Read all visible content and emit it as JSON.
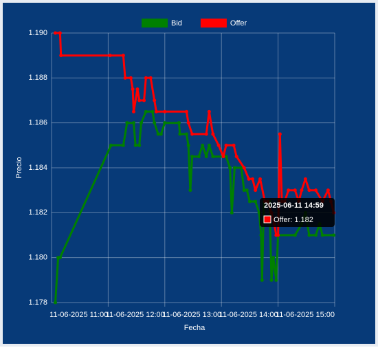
{
  "chart_data": {
    "type": "line",
    "y_label": "Precio",
    "x_label": "Fecha",
    "xlim": [
      "2025-06-11 10:00",
      "2025-06-11 15:00"
    ],
    "xticks": [
      {
        "value": "2025-06-11 11:00",
        "label": "11-06-2025 11:00"
      },
      {
        "value": "2025-06-11 12:00",
        "label": "11-06-2025 12:00"
      },
      {
        "value": "2025-06-11 13:00",
        "label": "11-06-2025 13:00"
      },
      {
        "value": "2025-06-11 14:00",
        "label": "11-06-2025 14:00"
      },
      {
        "value": "2025-06-11 15:00",
        "label": "11-06-2025 15:00"
      }
    ],
    "ylim": [
      1.178,
      1.19
    ],
    "yticks": [
      1.178,
      {
        "value": 1.18,
        "label": "1.180"
      },
      1.182,
      1.184,
      1.186,
      1.188,
      {
        "value": 1.19,
        "label": "1.190"
      }
    ],
    "grid": true,
    "legend": "top",
    "series": [
      {
        "name": "Bid",
        "color": "#008000",
        "x": [
          "2025-06-11 10:04",
          "2025-06-11 10:07",
          "2025-06-11 10:09",
          "2025-06-11 11:03",
          "2025-06-11 11:16",
          "2025-06-11 11:20",
          "2025-06-11 11:27",
          "2025-06-11 11:29",
          "2025-06-11 11:33",
          "2025-06-11 11:35",
          "2025-06-11 11:40",
          "2025-06-11 11:47",
          "2025-06-11 11:49",
          "2025-06-11 11:53",
          "2025-06-11 11:56",
          "2025-06-11 12:00",
          "2025-06-11 12:15",
          "2025-06-11 12:16",
          "2025-06-11 12:23",
          "2025-06-11 12:25",
          "2025-06-11 12:27",
          "2025-06-11 12:29",
          "2025-06-11 12:36",
          "2025-06-11 12:40",
          "2025-06-11 12:44",
          "2025-06-11 12:47",
          "2025-06-11 12:51",
          "2025-06-11 13:05",
          "2025-06-11 13:09",
          "2025-06-11 13:11",
          "2025-06-11 13:14",
          "2025-06-11 13:21",
          "2025-06-11 13:24",
          "2025-06-11 13:27",
          "2025-06-11 13:30",
          "2025-06-11 13:36",
          "2025-06-11 13:40",
          "2025-06-11 13:42",
          "2025-06-11 13:43",
          "2025-06-11 13:45",
          "2025-06-11 13:51",
          "2025-06-11 13:53",
          "2025-06-11 13:55",
          "2025-06-11 13:58",
          "2025-06-11 14:00",
          "2025-06-11 14:18",
          "2025-06-11 14:25",
          "2025-06-11 14:29",
          "2025-06-11 14:33",
          "2025-06-11 14:40",
          "2025-06-11 14:44",
          "2025-06-11 14:47",
          "2025-06-11 14:59"
        ],
        "values": [
          1.178,
          1.18,
          1.18,
          1.185,
          1.185,
          1.186,
          1.186,
          1.185,
          1.185,
          1.186,
          1.1865,
          1.1865,
          1.186,
          1.1855,
          1.1855,
          1.186,
          1.186,
          1.1855,
          1.1855,
          1.185,
          1.183,
          1.1845,
          1.1845,
          1.185,
          1.1845,
          1.185,
          1.1845,
          1.1845,
          1.184,
          1.182,
          1.184,
          1.184,
          1.183,
          1.183,
          1.1825,
          1.1825,
          1.182,
          1.181,
          1.179,
          1.1825,
          1.1825,
          1.179,
          1.18,
          1.179,
          1.181,
          1.181,
          1.1815,
          1.182,
          1.181,
          1.181,
          1.1815,
          1.181,
          1.181
        ]
      },
      {
        "name": "Offer",
        "color": "#ff0000",
        "x": [
          "2025-06-11 10:04",
          "2025-06-11 10:09",
          "2025-06-11 10:10",
          "2025-06-11 11:02",
          "2025-06-11 11:16",
          "2025-06-11 11:18",
          "2025-06-11 11:24",
          "2025-06-11 11:26",
          "2025-06-11 11:27",
          "2025-06-11 11:31",
          "2025-06-11 11:33",
          "2025-06-11 11:38",
          "2025-06-11 11:40",
          "2025-06-11 11:45",
          "2025-06-11 11:49",
          "2025-06-11 11:51",
          "2025-06-11 12:00",
          "2025-06-11 12:23",
          "2025-06-11 12:25",
          "2025-06-11 12:29",
          "2025-06-11 12:44",
          "2025-06-11 12:47",
          "2025-06-11 12:51",
          "2025-06-11 12:57",
          "2025-06-11 13:02",
          "2025-06-11 13:05",
          "2025-06-11 13:13",
          "2025-06-11 13:16",
          "2025-06-11 13:24",
          "2025-06-11 13:29",
          "2025-06-11 13:33",
          "2025-06-11 13:36",
          "2025-06-11 13:41",
          "2025-06-11 13:46",
          "2025-06-11 13:49",
          "2025-06-11 13:53",
          "2025-06-11 13:56",
          "2025-06-11 13:58",
          "2025-06-11 14:00",
          "2025-06-11 14:02",
          "2025-06-11 14:04",
          "2025-06-11 14:07",
          "2025-06-11 14:11",
          "2025-06-11 14:18",
          "2025-06-11 14:22",
          "2025-06-11 14:25",
          "2025-06-11 14:29",
          "2025-06-11 14:33",
          "2025-06-11 14:40",
          "2025-06-11 14:47",
          "2025-06-11 14:53",
          "2025-06-11 14:56",
          "2025-06-11 14:59"
        ],
        "values": [
          1.19,
          1.19,
          1.189,
          1.189,
          1.189,
          1.188,
          1.188,
          1.1875,
          1.1865,
          1.1875,
          1.187,
          1.187,
          1.188,
          1.188,
          1.187,
          1.1865,
          1.1865,
          1.1865,
          1.186,
          1.1855,
          1.1855,
          1.1865,
          1.1855,
          1.185,
          1.1845,
          1.185,
          1.185,
          1.1845,
          1.184,
          1.1835,
          1.1835,
          1.183,
          1.1835,
          1.1825,
          1.1825,
          1.182,
          1.1815,
          1.181,
          1.181,
          1.1855,
          1.1825,
          1.1825,
          1.183,
          1.183,
          1.1825,
          1.183,
          1.1835,
          1.183,
          1.183,
          1.1825,
          1.183,
          1.1825,
          1.182
        ]
      }
    ],
    "tooltip": {
      "title": "2025-06-11 14:59",
      "label": "Offer: 1.182",
      "series": 1
    }
  }
}
